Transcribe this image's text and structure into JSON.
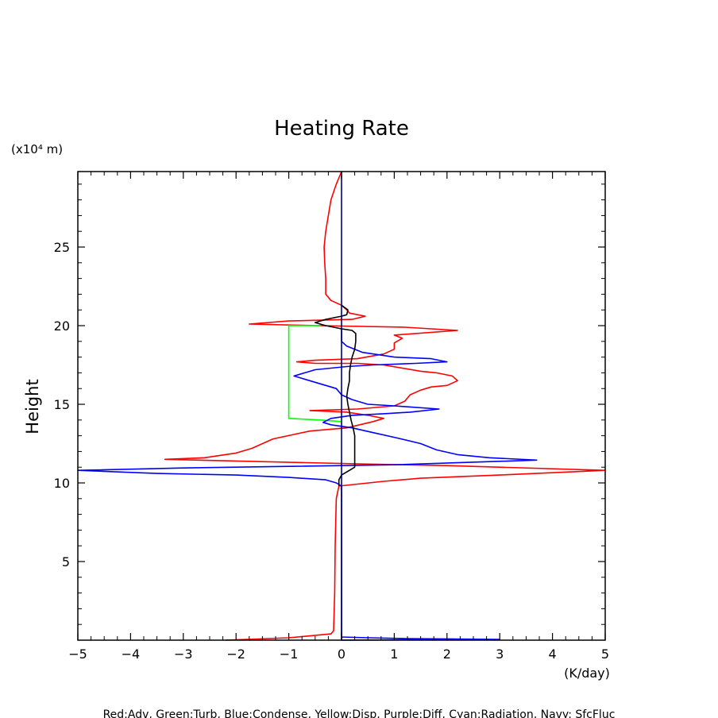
{
  "chart_data": {
    "type": "line",
    "title": "Heating Rate",
    "ylabel": "Height",
    "y_unit": "(x10⁴ m)",
    "x_unit": "(K/day)",
    "xlim": [
      -5,
      5
    ],
    "ylim": [
      0,
      29.8
    ],
    "x_ticks": [
      -5,
      -4,
      -3,
      -2,
      -1,
      0,
      1,
      2,
      3,
      4,
      5
    ],
    "x_tick_labels": [
      "−5",
      "−4",
      "−3",
      "−2",
      "−1",
      "0",
      "1",
      "2",
      "3",
      "4",
      "5"
    ],
    "y_ticks": [
      5,
      10,
      15,
      20,
      25
    ],
    "y_tick_labels": [
      "5",
      "10",
      "15",
      "20",
      "25"
    ],
    "grid": false,
    "legend_text": "Red:Adv, Green:Turb, Blue:Condense, Yellow:Disp, Purple:Diff, Cyan:Radiation, Navy: SfcFluc",
    "series": [
      {
        "color": "#ff0000",
        "points": [
          [
            -2.2,
            0.0
          ],
          [
            -1.0,
            0.15
          ],
          [
            -0.2,
            0.4
          ],
          [
            -0.15,
            0.6
          ],
          [
            -0.13,
            3
          ],
          [
            -0.12,
            6
          ],
          [
            -0.1,
            9
          ],
          [
            -0.05,
            9.8
          ],
          [
            0.8,
            10.1
          ],
          [
            1.5,
            10.3
          ],
          [
            3,
            10.5
          ],
          [
            5,
            10.8
          ],
          [
            2,
            11.1
          ],
          [
            0.5,
            11.2
          ],
          [
            -3.35,
            11.5
          ],
          [
            -2.6,
            11.6
          ],
          [
            -2.0,
            11.9
          ],
          [
            -1.7,
            12.2
          ],
          [
            -1.3,
            12.8
          ],
          [
            -0.6,
            13.3
          ],
          [
            0.1,
            13.5
          ],
          [
            0.6,
            13.9
          ],
          [
            0.8,
            14.1
          ],
          [
            0.5,
            14.3
          ],
          [
            0.1,
            14.5
          ],
          [
            -0.6,
            14.6
          ],
          [
            0.3,
            14.7
          ],
          [
            1.0,
            14.9
          ],
          [
            1.2,
            15.2
          ],
          [
            1.3,
            15.6
          ],
          [
            1.5,
            15.9
          ],
          [
            1.7,
            16.1
          ],
          [
            2.0,
            16.2
          ],
          [
            2.2,
            16.5
          ],
          [
            2.1,
            16.8
          ],
          [
            1.8,
            17.0
          ],
          [
            1.5,
            17.1
          ],
          [
            0.8,
            17.5
          ],
          [
            0.3,
            17.6
          ],
          [
            -0.5,
            17.6
          ],
          [
            -0.85,
            17.7
          ],
          [
            -0.5,
            17.8
          ],
          [
            0.3,
            17.9
          ],
          [
            0.8,
            18.2
          ],
          [
            1.0,
            18.5
          ],
          [
            1.0,
            18.9
          ],
          [
            1.15,
            19.2
          ],
          [
            1.0,
            19.4
          ],
          [
            2.2,
            19.7
          ],
          [
            1.2,
            19.9
          ],
          [
            -0.4,
            20.0
          ],
          [
            -1.75,
            20.1
          ],
          [
            -1.0,
            20.3
          ],
          [
            0.2,
            20.4
          ],
          [
            0.45,
            20.6
          ],
          [
            0.15,
            20.8
          ],
          [
            0.1,
            21.0
          ],
          [
            0.0,
            21.3
          ],
          [
            -0.2,
            21.6
          ],
          [
            -0.3,
            22.0
          ],
          [
            -0.3,
            23
          ],
          [
            -0.32,
            24
          ],
          [
            -0.33,
            25
          ],
          [
            -0.3,
            26
          ],
          [
            -0.25,
            27
          ],
          [
            -0.2,
            28
          ],
          [
            -0.1,
            29
          ],
          [
            0.0,
            29.8
          ]
        ]
      },
      {
        "color": "#00ff00",
        "points": [
          [
            -0.4,
            20.0
          ],
          [
            -1.0,
            20.0
          ],
          [
            -1.0,
            17.0
          ],
          [
            -1.0,
            14.1
          ],
          [
            -0.4,
            14.0
          ],
          [
            0.0,
            13.9
          ]
        ]
      },
      {
        "color": "#0000ff",
        "points": [
          [
            0.0,
            0.2
          ],
          [
            0.5,
            0.15
          ],
          [
            1.2,
            0.1
          ],
          [
            2.0,
            0.08
          ],
          [
            3.0,
            0.05
          ],
          [
            0.0,
            0.0
          ],
          [
            0.0,
            9.8
          ],
          [
            -0.1,
            10.0
          ],
          [
            -0.3,
            10.2
          ],
          [
            -1.0,
            10.35
          ],
          [
            -2.0,
            10.5
          ],
          [
            -3.5,
            10.6
          ],
          [
            -5,
            10.8
          ],
          [
            -3,
            10.95
          ],
          [
            -1,
            11.05
          ],
          [
            1,
            11.15
          ],
          [
            3.7,
            11.45
          ],
          [
            2.8,
            11.6
          ],
          [
            2.2,
            11.8
          ],
          [
            1.8,
            12.1
          ],
          [
            1.5,
            12.5
          ],
          [
            1.0,
            12.9
          ],
          [
            0.6,
            13.2
          ],
          [
            0.2,
            13.5
          ],
          [
            -0.2,
            13.7
          ],
          [
            -0.35,
            13.85
          ],
          [
            -0.2,
            14.1
          ],
          [
            0.2,
            14.3
          ],
          [
            0.8,
            14.4
          ],
          [
            1.3,
            14.5
          ],
          [
            1.85,
            14.7
          ],
          [
            1.0,
            14.9
          ],
          [
            0.5,
            15.0
          ],
          [
            0.2,
            15.3
          ],
          [
            0.0,
            15.6
          ],
          [
            -0.1,
            16.0
          ],
          [
            -0.4,
            16.3
          ],
          [
            -0.9,
            16.8
          ],
          [
            -0.5,
            17.2
          ],
          [
            0.1,
            17.4
          ],
          [
            0.6,
            17.5
          ],
          [
            1.4,
            17.6
          ],
          [
            2.0,
            17.7
          ],
          [
            1.7,
            17.9
          ],
          [
            1.0,
            18.0
          ],
          [
            0.4,
            18.3
          ],
          [
            0.1,
            18.7
          ],
          [
            0.0,
            19.0
          ],
          [
            0.0,
            19.8
          ]
        ]
      },
      {
        "color": "#000000",
        "points": [
          [
            -0.05,
            9.8
          ],
          [
            -0.05,
            10.2
          ],
          [
            0.0,
            10.5
          ],
          [
            0.15,
            10.8
          ],
          [
            0.25,
            11.0
          ],
          [
            0.25,
            12.0
          ],
          [
            0.25,
            13.0
          ],
          [
            0.22,
            13.5
          ],
          [
            0.18,
            14.0
          ],
          [
            0.15,
            14.5
          ],
          [
            0.12,
            15.0
          ],
          [
            0.1,
            15.5
          ],
          [
            0.12,
            16.0
          ],
          [
            0.15,
            16.5
          ],
          [
            0.15,
            17.0
          ],
          [
            0.17,
            17.5
          ],
          [
            0.2,
            18.0
          ],
          [
            0.25,
            18.5
          ],
          [
            0.27,
            19.0
          ],
          [
            0.27,
            19.5
          ],
          [
            0.2,
            19.7
          ],
          [
            0.0,
            19.8
          ],
          [
            -0.3,
            20.0
          ],
          [
            -0.5,
            20.2
          ],
          [
            -0.3,
            20.4
          ],
          [
            0.0,
            20.6
          ],
          [
            0.1,
            20.7
          ],
          [
            0.12,
            21.0
          ],
          [
            0.0,
            21.3
          ]
        ]
      },
      {
        "color": "#000080",
        "points": [
          [
            0.0,
            0.0
          ],
          [
            0.0,
            29.8
          ]
        ]
      }
    ]
  }
}
